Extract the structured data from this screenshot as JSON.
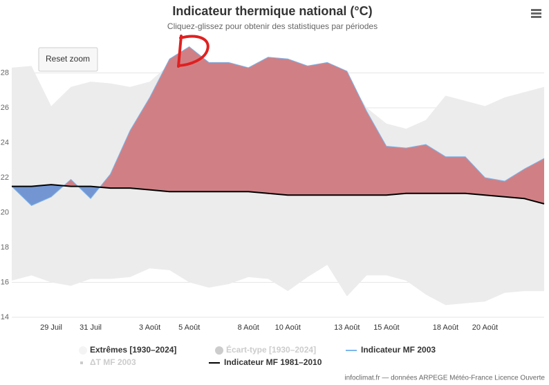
{
  "chart_data": {
    "type": "area-climate",
    "title": "Indicateur thermique national (°C)",
    "subtitle": "Cliquez-glissez pour obtenir des statistiques par périodes",
    "reset_button": "Reset zoom",
    "credits": "infoclimat.fr — données ARPEGE Météo-France Licence Ouverte",
    "categories": [
      null,
      null,
      "29 Juil",
      null,
      "31 Juil",
      null,
      null,
      "3 Août",
      null,
      "5 Août",
      null,
      null,
      "8 Août",
      null,
      "10 Août",
      null,
      null,
      "13 Août",
      null,
      "15 Août",
      null,
      null,
      "18 Août",
      null,
      "20 Août",
      null,
      null,
      null
    ],
    "ylim": [
      14,
      30
    ],
    "yticks": [
      14,
      16,
      18,
      20,
      22,
      24,
      26,
      28
    ],
    "grid": true,
    "series": [
      {
        "name": "Extrêmes [1930–2024]",
        "color": "#ececec",
        "visible": true,
        "high": [
          28.3,
          28.4,
          26.1,
          27.2,
          27.5,
          27.4,
          27.2,
          27.5,
          28.5,
          28.8,
          28.6,
          28.5,
          28.2,
          28.5,
          28.5,
          28.3,
          28.4,
          27.8,
          26.0,
          25.1,
          24.8,
          25.3,
          26.7,
          26.4,
          26.1,
          26.6,
          26.9,
          27.2
        ],
        "low": [
          16.1,
          16.4,
          16.0,
          15.8,
          16.2,
          16.2,
          16.3,
          16.8,
          16.7,
          16.0,
          15.7,
          15.9,
          16.3,
          16.2,
          15.5,
          16.3,
          17.0,
          15.2,
          16.4,
          16.4,
          16.1,
          15.3,
          14.7,
          14.8,
          14.9,
          15.4,
          15.5,
          15.5
        ]
      },
      {
        "name": "Écart-type [1930–2024]",
        "color": "#cccccc",
        "visible": false
      },
      {
        "name": "Indicateur MF 2003",
        "color": "#7cb5ec",
        "visible": true,
        "fill_above": "#d08085",
        "fill_below": "#7396d3",
        "values": [
          21.5,
          20.4,
          20.9,
          21.9,
          20.8,
          22.2,
          24.7,
          26.6,
          28.8,
          29.5,
          28.6,
          28.6,
          28.3,
          28.9,
          28.8,
          28.4,
          28.6,
          28.1,
          25.8,
          23.8,
          23.7,
          23.9,
          23.2,
          23.2,
          22.0,
          21.8,
          22.5,
          23.1
        ]
      },
      {
        "name": "ΔT MF 2003",
        "color": "#cccccc",
        "visible": false
      },
      {
        "name": "Indicateur MF 1981–2010",
        "color": "#000000",
        "visible": true,
        "values": [
          21.5,
          21.5,
          21.6,
          21.5,
          21.5,
          21.4,
          21.4,
          21.3,
          21.2,
          21.2,
          21.2,
          21.2,
          21.2,
          21.1,
          21.0,
          21.0,
          21.0,
          21.0,
          21.0,
          21.0,
          21.1,
          21.1,
          21.1,
          21.1,
          21.0,
          20.9,
          20.8,
          20.5
        ]
      }
    ]
  }
}
